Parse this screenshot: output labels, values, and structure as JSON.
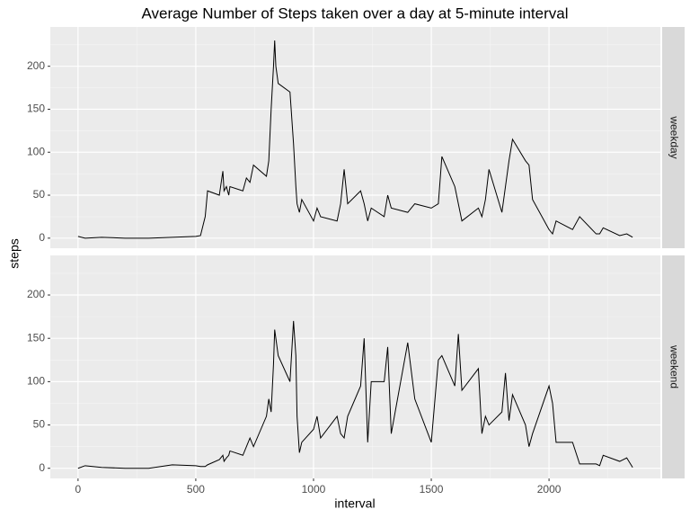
{
  "chart_data": {
    "type": "line",
    "title": "Average Number of Steps taken over a day at 5-minute interval",
    "xlabel": "interval",
    "ylabel": "steps",
    "x": [
      0,
      30,
      100,
      200,
      300,
      400,
      500,
      520,
      540,
      550,
      600,
      615,
      620,
      630,
      640,
      645,
      700,
      715,
      730,
      745,
      800,
      810,
      820,
      830,
      835,
      840,
      850,
      900,
      915,
      925,
      930,
      940,
      950,
      1000,
      1015,
      1030,
      1100,
      1115,
      1130,
      1145,
      1200,
      1215,
      1230,
      1245,
      1300,
      1315,
      1330,
      1400,
      1430,
      1500,
      1530,
      1545,
      1600,
      1615,
      1630,
      1700,
      1715,
      1730,
      1745,
      1800,
      1815,
      1830,
      1845,
      1900,
      1915,
      1930,
      2000,
      2015,
      2030,
      2100,
      2130,
      2200,
      2215,
      2230,
      2300,
      2330,
      2355
    ],
    "series": [
      {
        "name": "weekday",
        "color": "#000000",
        "values": [
          2,
          0,
          1,
          0,
          0,
          1,
          2,
          3,
          25,
          55,
          50,
          78,
          55,
          60,
          50,
          60,
          55,
          70,
          65,
          85,
          72,
          90,
          150,
          200,
          230,
          200,
          180,
          170,
          110,
          60,
          40,
          30,
          45,
          20,
          35,
          25,
          20,
          40,
          80,
          40,
          55,
          40,
          20,
          35,
          25,
          50,
          35,
          30,
          40,
          35,
          40,
          95,
          60,
          40,
          20,
          35,
          25,
          45,
          80,
          30,
          60,
          90,
          115,
          90,
          85,
          45,
          10,
          5,
          20,
          10,
          25,
          5,
          5,
          12,
          3,
          5,
          1
        ]
      },
      {
        "name": "weekend",
        "color": "#000000",
        "values": [
          0,
          3,
          1,
          0,
          0,
          4,
          3,
          2,
          2,
          4,
          10,
          15,
          8,
          12,
          15,
          20,
          15,
          25,
          35,
          25,
          60,
          80,
          65,
          120,
          160,
          150,
          130,
          100,
          170,
          130,
          60,
          18,
          30,
          45,
          60,
          35,
          60,
          40,
          35,
          60,
          95,
          150,
          30,
          100,
          100,
          140,
          40,
          145,
          80,
          30,
          125,
          130,
          95,
          155,
          90,
          115,
          40,
          60,
          50,
          65,
          110,
          55,
          85,
          50,
          25,
          40,
          95,
          75,
          30,
          30,
          5,
          5,
          3,
          15,
          8,
          12,
          1
        ]
      }
    ],
    "xlim": [
      -117.75,
      2472.75
    ],
    "xticks": [
      0,
      500,
      1000,
      1500,
      2000
    ],
    "ylim": [
      -11.7,
      245.7
    ],
    "yticks": [
      0,
      50,
      100,
      150,
      200
    ],
    "grid": true
  }
}
